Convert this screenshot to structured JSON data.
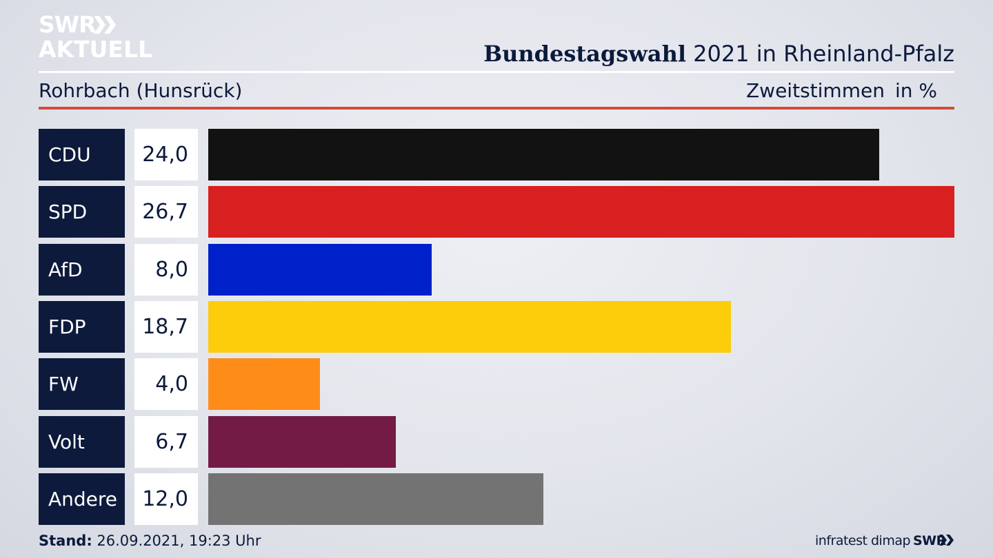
{
  "logo": {
    "line1": "SWR",
    "line2": "AKTUELL"
  },
  "header": {
    "title_bold": "Bundestagswahl",
    "title_rest": " 2021 in Rheinland-Pfalz",
    "subtitle": "Rohrbach (Hunsrück)",
    "measure": "Zweitstimmen",
    "unit": "in %"
  },
  "colors": {
    "party_box": "#0d1a3c",
    "accent_rule": "#d24b3a"
  },
  "chart_data": {
    "type": "bar",
    "orientation": "horizontal",
    "title": "Bundestagswahl 2021 in Rheinland-Pfalz",
    "subtitle": "Rohrbach (Hunsrück)",
    "measure": "Zweitstimmen",
    "unit": "in %",
    "xlim": [
      0,
      26.7
    ],
    "categories": [
      "CDU",
      "SPD",
      "AfD",
      "FDP",
      "FW",
      "Volt",
      "Andere"
    ],
    "values": [
      24.0,
      26.7,
      8.0,
      18.7,
      4.0,
      6.7,
      12.0
    ],
    "value_labels": [
      "24,0",
      "26,7",
      "8,0",
      "18,7",
      "4,0",
      "6,7",
      "12,0"
    ],
    "bar_colors": [
      "#121212",
      "#d7201f",
      "#0020c9",
      "#fdcc0b",
      "#fe8c18",
      "#731b45",
      "#737373"
    ],
    "grid": false,
    "legend": "none"
  },
  "footer": {
    "stand_label": "Stand:",
    "stand_value": " 26.09.2021, 19:23 Uhr",
    "source": "infratest dimap",
    "brand": "SWR"
  }
}
